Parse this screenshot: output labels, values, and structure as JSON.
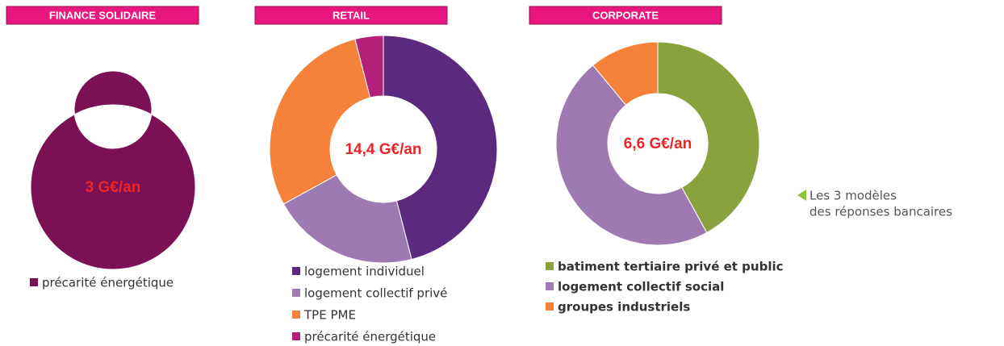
{
  "chart_data": [
    {
      "type": "pie",
      "title": "FINANCE SOLIDAIRE",
      "center_label": "3 G€/an",
      "categories": [
        "précarité énergétique"
      ],
      "values": [
        100
      ],
      "colors": [
        "#7b1154"
      ]
    },
    {
      "type": "pie",
      "title": "RETAIL",
      "center_label": "14,4 G€/an",
      "categories": [
        "logement individuel",
        "logement collectif privé",
        "TPE PME",
        "précarité énergétique"
      ],
      "values": [
        46,
        21,
        29,
        4
      ],
      "colors": [
        "#5b2a7e",
        "#9e7ab3",
        "#f5813a",
        "#b3207a"
      ]
    },
    {
      "type": "pie",
      "title": "CORPORATE",
      "center_label": "6,6 G€/an",
      "categories": [
        "batiment tertiaire privé et public",
        "logement collectif social",
        "groupes industriels"
      ],
      "values": [
        42,
        47,
        11
      ],
      "colors": [
        "#8aa23d",
        "#9e7ab3",
        "#f5813a"
      ]
    }
  ],
  "annotation": {
    "lines": [
      "Les 3 modèles",
      "des réponses bancaires"
    ]
  }
}
